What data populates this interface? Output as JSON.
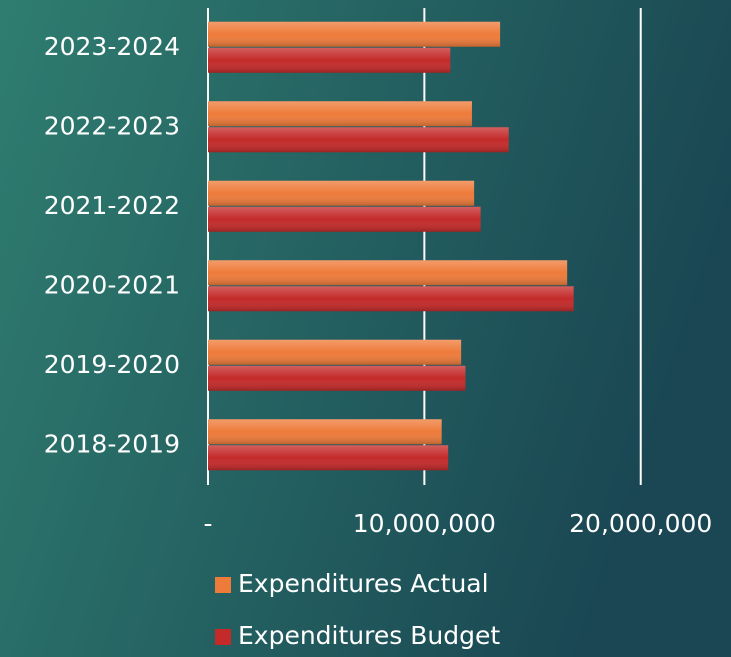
{
  "chart_data": {
    "type": "bar",
    "orientation": "horizontal",
    "categories": [
      "2023-2024",
      "2022-2023",
      "2021-2022",
      "2020-2021",
      "2019-2020",
      "2018-2019"
    ],
    "series": [
      {
        "name": "Expenditures Actual",
        "color": "#ee7b3a",
        "values": [
          13500000,
          12200000,
          12300000,
          16600000,
          11700000,
          10800000
        ]
      },
      {
        "name": "Expenditures Budget",
        "color": "#c42a2a",
        "values": [
          11200000,
          13900000,
          12600000,
          16900000,
          11900000,
          11100000
        ]
      }
    ],
    "xlim": [
      0,
      22000000
    ],
    "xticks": [
      {
        "value": 0,
        "label": "-"
      },
      {
        "value": 10000000,
        "label": "10,000,000"
      },
      {
        "value": 20000000,
        "label": "20,000,000"
      }
    ],
    "grid": true,
    "legend": "bottom"
  }
}
